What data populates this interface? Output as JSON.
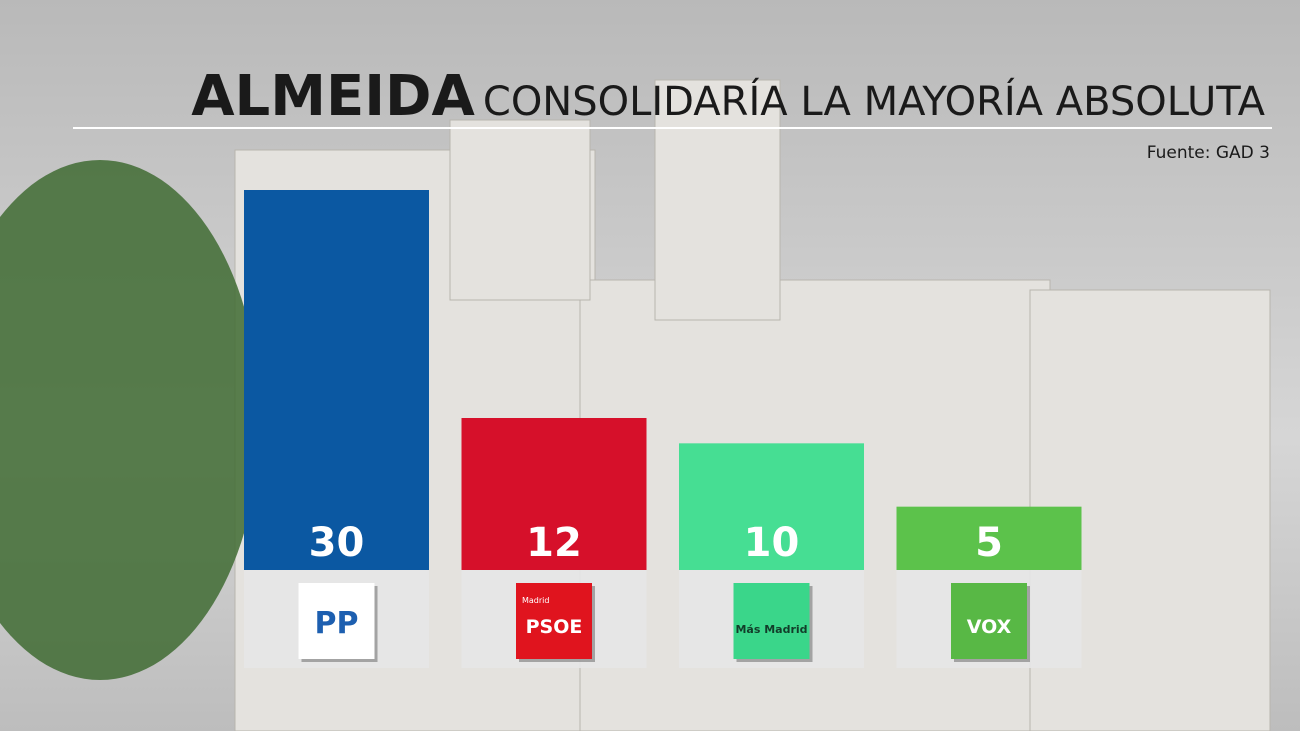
{
  "chart_data": {
    "type": "bar",
    "title": "ALMEIDA",
    "subtitle": "CONSOLIDARÍA LA MAYORÍA ABSOLUTA",
    "source": "Fuente: GAD 3",
    "categories": [
      "PP",
      "PSOE",
      "Más Madrid",
      "VOX"
    ],
    "logo_notes": [
      null,
      "Madrid",
      null,
      null
    ],
    "values": [
      30,
      12,
      10,
      5
    ],
    "colors": [
      "#0b58a2",
      "#d6102a",
      "#46de93",
      "#5cc24b"
    ],
    "logo_colors": [
      "#ffffff",
      "#e0141e",
      "#3ad68a",
      "#58b845"
    ],
    "logo_text_colors": [
      "#1d5fb0",
      "#ffffff",
      "#123d2a",
      "#ffffff"
    ],
    "ylim": [
      0,
      30
    ]
  }
}
